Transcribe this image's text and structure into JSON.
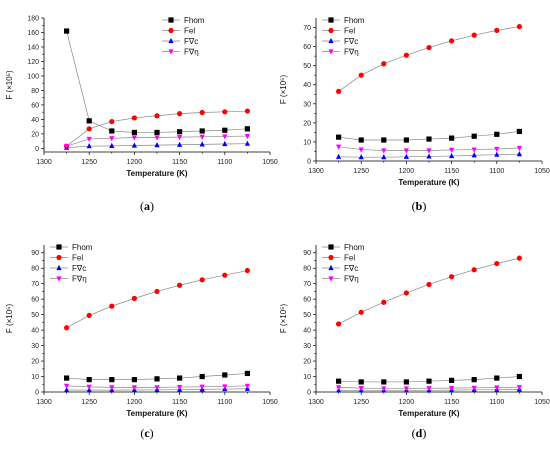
{
  "styles": {
    "colors": {
      "Fhom": "#000000",
      "Fel": "#ff0000",
      "F∇c": "#0000ff",
      "F∇η": "#ff00ff"
    },
    "markers": {
      "Fhom": "square",
      "Fel": "circle",
      "F∇c": "triangle-up",
      "F∇η": "triangle-down"
    }
  },
  "chart_data": [
    {
      "type": "line",
      "panel_label": "a",
      "xlabel": "Temperature (K)",
      "ylabel": "F (×10⁵)",
      "xlim": [
        1300,
        1050
      ],
      "ylim": [
        -5,
        180
      ],
      "xticks": [
        1300,
        1250,
        1200,
        1150,
        1100,
        1050
      ],
      "yticks": [
        0,
        20,
        40,
        60,
        80,
        100,
        120,
        140,
        160,
        180
      ],
      "legend_position": "top-right",
      "x": [
        1275,
        1250,
        1225,
        1200,
        1175,
        1150,
        1125,
        1100,
        1075
      ],
      "series": [
        {
          "name": "Fhom",
          "values": [
            162,
            38,
            24,
            22,
            22,
            23,
            24,
            25,
            27
          ]
        },
        {
          "name": "Fel",
          "values": [
            3,
            27,
            37,
            42,
            45,
            48,
            49.5,
            50.5,
            51.5
          ]
        },
        {
          "name": "F∇c",
          "values": [
            1,
            3,
            3.5,
            4,
            4.5,
            5,
            5.5,
            6,
            6.5
          ]
        },
        {
          "name": "F∇η",
          "values": [
            3,
            13,
            14,
            15,
            15,
            15.5,
            16,
            16.5,
            17
          ]
        }
      ]
    },
    {
      "type": "line",
      "panel_label": "b",
      "xlabel": "Temperature (K)",
      "ylabel": "F (×10⁵)",
      "xlim": [
        1300,
        1050
      ],
      "ylim": [
        0,
        75
      ],
      "xticks": [
        1300,
        1250,
        1200,
        1150,
        1100,
        1050
      ],
      "yticks": [
        0,
        10,
        20,
        30,
        40,
        50,
        60,
        70
      ],
      "legend_position": "top-left",
      "x": [
        1275,
        1250,
        1225,
        1200,
        1175,
        1150,
        1125,
        1100,
        1075
      ],
      "series": [
        {
          "name": "Fhom",
          "values": [
            12.5,
            11,
            11,
            11,
            11.5,
            12,
            13,
            14,
            15.5
          ]
        },
        {
          "name": "Fel",
          "values": [
            36.5,
            45,
            51,
            55.5,
            59.5,
            63,
            66,
            68.5,
            70.5
          ]
        },
        {
          "name": "F∇c",
          "values": [
            2.2,
            2,
            2,
            2.2,
            2.4,
            2.6,
            3,
            3.3,
            3.6
          ]
        },
        {
          "name": "F∇η",
          "values": [
            7.5,
            6,
            5.5,
            5.5,
            5.5,
            5.8,
            6,
            6.3,
            6.8
          ]
        }
      ]
    },
    {
      "type": "line",
      "panel_label": "c",
      "xlabel": "Temperature (K)",
      "ylabel": "F (×10⁵)",
      "xlim": [
        1300,
        1050
      ],
      "ylim": [
        0,
        95
      ],
      "xticks": [
        1300,
        1250,
        1200,
        1150,
        1100,
        1050
      ],
      "yticks": [
        0,
        10,
        20,
        30,
        40,
        50,
        60,
        70,
        80,
        90
      ],
      "legend_position": "top-left",
      "x": [
        1275,
        1250,
        1225,
        1200,
        1175,
        1150,
        1125,
        1100,
        1075
      ],
      "series": [
        {
          "name": "Fhom",
          "values": [
            9,
            8,
            8,
            8,
            8.5,
            9,
            10,
            11,
            12
          ]
        },
        {
          "name": "Fel",
          "values": [
            41.5,
            49.5,
            55.5,
            60.5,
            65,
            69,
            72.5,
            75.5,
            78.5
          ]
        },
        {
          "name": "F∇c",
          "values": [
            1.3,
            1.2,
            1.2,
            1.3,
            1.4,
            1.5,
            1.7,
            1.9,
            2.1
          ]
        },
        {
          "name": "F∇η",
          "values": [
            4,
            3.3,
            3,
            3,
            3,
            3.2,
            3.4,
            3.6,
            4
          ]
        }
      ]
    },
    {
      "type": "line",
      "panel_label": "d",
      "xlabel": "Temperature (K)",
      "ylabel": "F (×10⁵)",
      "xlim": [
        1300,
        1050
      ],
      "ylim": [
        0,
        95
      ],
      "xticks": [
        1300,
        1250,
        1200,
        1150,
        1100,
        1050
      ],
      "yticks": [
        0,
        10,
        20,
        30,
        40,
        50,
        60,
        70,
        80,
        90
      ],
      "legend_position": "top-left",
      "x": [
        1275,
        1250,
        1225,
        1200,
        1175,
        1150,
        1125,
        1100,
        1075
      ],
      "series": [
        {
          "name": "Fhom",
          "values": [
            7,
            6.5,
            6.5,
            6.5,
            7,
            7.5,
            8,
            9,
            10
          ]
        },
        {
          "name": "Fel",
          "values": [
            44,
            51.5,
            58,
            64,
            69.5,
            74.5,
            79,
            83,
            86.5
          ]
        },
        {
          "name": "F∇c",
          "values": [
            1,
            1,
            1,
            1,
            1.1,
            1.2,
            1.4,
            1.5,
            1.7
          ]
        },
        {
          "name": "F∇η",
          "values": [
            3,
            2.5,
            2.3,
            2.3,
            2.4,
            2.5,
            2.7,
            2.9,
            3.1
          ]
        }
      ]
    }
  ]
}
